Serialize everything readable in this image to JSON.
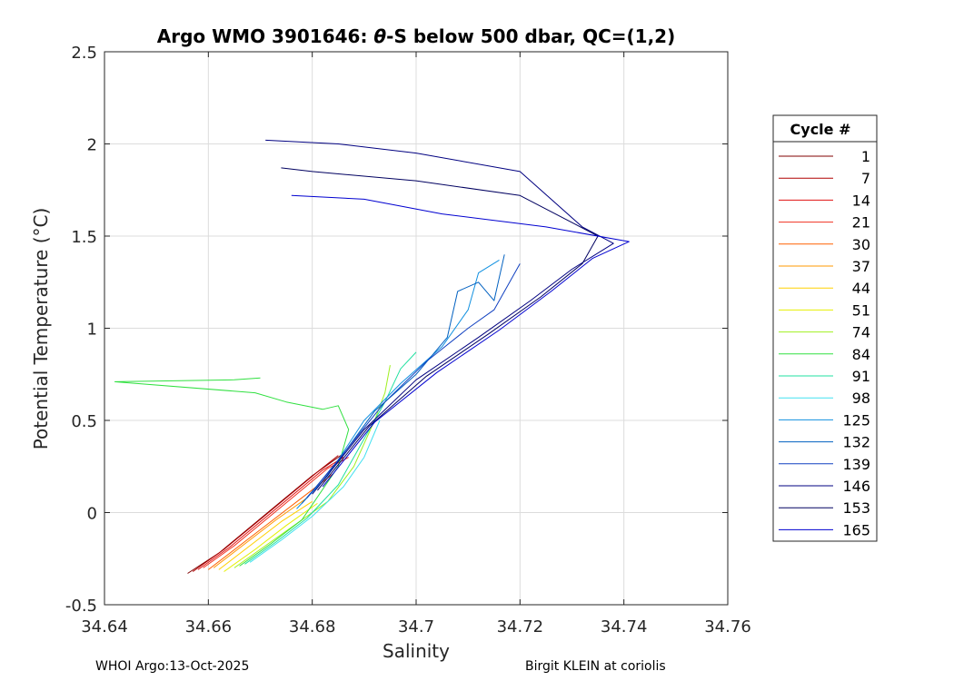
{
  "chart_data": {
    "type": "line",
    "title_prefix": "Argo WMO 3901646: ",
    "title_symbol": "θ",
    "title_suffix": "-S below 500 dbar,  QC=(1,2)",
    "xlabel": "Salinity",
    "ylabel": "Potential Temperature (°C)",
    "xlim": [
      34.64,
      34.76
    ],
    "ylim": [
      -0.5,
      2.5
    ],
    "xticks": [
      "34.64",
      "34.66",
      "34.68",
      "34.7",
      "34.72",
      "34.74",
      "34.76"
    ],
    "yticks": [
      "-0.5",
      "0",
      "0.5",
      "1",
      "1.5",
      "2",
      "2.5"
    ],
    "grid": true,
    "legend": {
      "title": "Cycle #",
      "placement": "outside-right",
      "entries": [
        "1",
        "7",
        "14",
        "21",
        "30",
        "37",
        "44",
        "51",
        "74",
        "84",
        "91",
        "98",
        "125",
        "132",
        "139",
        "146",
        "153",
        "165"
      ]
    },
    "series": [
      {
        "name": "1",
        "color": "#800000",
        "points": [
          [
            34.656,
            -0.33
          ],
          [
            34.662,
            -0.22
          ],
          [
            34.668,
            -0.08
          ],
          [
            34.674,
            0.06
          ],
          [
            34.68,
            0.2
          ],
          [
            34.686,
            0.32
          ]
        ]
      },
      {
        "name": "7",
        "color": "#b00000",
        "points": [
          [
            34.657,
            -0.32
          ],
          [
            34.663,
            -0.2
          ],
          [
            34.669,
            -0.06
          ],
          [
            34.675,
            0.08
          ],
          [
            34.681,
            0.22
          ],
          [
            34.685,
            0.31
          ]
        ]
      },
      {
        "name": "14",
        "color": "#e01010",
        "points": [
          [
            34.658,
            -0.31
          ],
          [
            34.664,
            -0.19
          ],
          [
            34.67,
            -0.05
          ],
          [
            34.676,
            0.09
          ],
          [
            34.682,
            0.23
          ],
          [
            34.686,
            0.3
          ]
        ]
      },
      {
        "name": "21",
        "color": "#f03020",
        "points": [
          [
            34.659,
            -0.3
          ],
          [
            34.665,
            -0.18
          ],
          [
            34.671,
            -0.04
          ],
          [
            34.677,
            0.1
          ],
          [
            34.683,
            0.24
          ],
          [
            34.687,
            0.3
          ]
        ]
      },
      {
        "name": "30",
        "color": "#ff6000",
        "points": [
          [
            34.66,
            -0.31
          ],
          [
            34.666,
            -0.18
          ],
          [
            34.672,
            -0.05
          ],
          [
            34.678,
            0.08
          ],
          [
            34.684,
            0.21
          ]
        ]
      },
      {
        "name": "37",
        "color": "#ff9900",
        "points": [
          [
            34.661,
            -0.3
          ],
          [
            34.667,
            -0.17
          ],
          [
            34.673,
            -0.04
          ],
          [
            34.679,
            0.08
          ]
        ]
      },
      {
        "name": "44",
        "color": "#ffd000",
        "points": [
          [
            34.662,
            -0.31
          ],
          [
            34.668,
            -0.18
          ],
          [
            34.674,
            -0.05
          ],
          [
            34.68,
            0.06
          ]
        ]
      },
      {
        "name": "51",
        "color": "#e6f000",
        "points": [
          [
            34.663,
            -0.32
          ],
          [
            34.669,
            -0.2
          ],
          [
            34.675,
            -0.07
          ],
          [
            34.681,
            0.05
          ]
        ]
      },
      {
        "name": "74",
        "color": "#a0f020",
        "points": [
          [
            34.665,
            -0.3
          ],
          [
            34.671,
            -0.18
          ],
          [
            34.677,
            -0.06
          ],
          [
            34.683,
            0.06
          ],
          [
            34.688,
            0.25
          ],
          [
            34.692,
            0.5
          ],
          [
            34.694,
            0.65
          ],
          [
            34.695,
            0.8
          ]
        ]
      },
      {
        "name": "84",
        "color": "#30e040",
        "points": [
          [
            34.666,
            -0.29
          ],
          [
            34.672,
            -0.17
          ],
          [
            34.678,
            -0.04
          ],
          [
            34.685,
            0.25
          ],
          [
            34.687,
            0.45
          ],
          [
            34.685,
            0.58
          ],
          [
            34.682,
            0.56
          ],
          [
            34.675,
            0.6
          ],
          [
            34.669,
            0.65
          ],
          [
            34.642,
            0.71
          ],
          [
            34.665,
            0.72
          ],
          [
            34.67,
            0.73
          ]
        ]
      },
      {
        "name": "91",
        "color": "#20e0a0",
        "points": [
          [
            34.667,
            -0.28
          ],
          [
            34.673,
            -0.16
          ],
          [
            34.679,
            -0.03
          ],
          [
            34.685,
            0.15
          ],
          [
            34.69,
            0.4
          ],
          [
            34.694,
            0.6
          ],
          [
            34.697,
            0.78
          ],
          [
            34.7,
            0.87
          ]
        ]
      },
      {
        "name": "98",
        "color": "#40e0f0",
        "points": [
          [
            34.668,
            -0.27
          ],
          [
            34.674,
            -0.15
          ],
          [
            34.68,
            -0.02
          ],
          [
            34.686,
            0.14
          ],
          [
            34.69,
            0.3
          ],
          [
            34.693,
            0.5
          ]
        ]
      },
      {
        "name": "125",
        "color": "#1090e0",
        "points": [
          [
            34.677,
            0.02
          ],
          [
            34.683,
            0.2
          ],
          [
            34.69,
            0.5
          ],
          [
            34.697,
            0.7
          ],
          [
            34.705,
            0.9
          ],
          [
            34.71,
            1.1
          ],
          [
            34.712,
            1.3
          ],
          [
            34.716,
            1.37
          ]
        ]
      },
      {
        "name": "132",
        "color": "#0060c0",
        "points": [
          [
            34.678,
            0.05
          ],
          [
            34.685,
            0.28
          ],
          [
            34.692,
            0.55
          ],
          [
            34.7,
            0.75
          ],
          [
            34.706,
            0.95
          ],
          [
            34.708,
            1.2
          ],
          [
            34.712,
            1.25
          ],
          [
            34.715,
            1.15
          ],
          [
            34.717,
            1.4
          ]
        ]
      },
      {
        "name": "139",
        "color": "#1040c0",
        "points": [
          [
            34.679,
            0.08
          ],
          [
            34.686,
            0.32
          ],
          [
            34.694,
            0.6
          ],
          [
            34.702,
            0.82
          ],
          [
            34.71,
            1.0
          ],
          [
            34.715,
            1.1
          ],
          [
            34.718,
            1.25
          ],
          [
            34.72,
            1.35
          ]
        ]
      },
      {
        "name": "146",
        "color": "#000080",
        "points": [
          [
            34.68,
            0.1
          ],
          [
            34.69,
            0.45
          ],
          [
            34.7,
            0.72
          ],
          [
            34.712,
            0.95
          ],
          [
            34.722,
            1.15
          ],
          [
            34.73,
            1.32
          ],
          [
            34.738,
            1.46
          ],
          [
            34.732,
            1.55
          ],
          [
            34.72,
            1.85
          ],
          [
            34.7,
            1.95
          ],
          [
            34.685,
            2.0
          ],
          [
            34.671,
            2.02
          ]
        ]
      },
      {
        "name": "153",
        "color": "#000060",
        "points": [
          [
            34.681,
            0.12
          ],
          [
            34.691,
            0.47
          ],
          [
            34.702,
            0.74
          ],
          [
            34.714,
            0.97
          ],
          [
            34.724,
            1.17
          ],
          [
            34.732,
            1.35
          ],
          [
            34.735,
            1.5
          ],
          [
            34.72,
            1.72
          ],
          [
            34.7,
            1.8
          ],
          [
            34.68,
            1.85
          ],
          [
            34.674,
            1.87
          ]
        ]
      },
      {
        "name": "165",
        "color": "#0000d0",
        "points": [
          [
            34.682,
            0.14
          ],
          [
            34.692,
            0.49
          ],
          [
            34.704,
            0.76
          ],
          [
            34.716,
            0.99
          ],
          [
            34.726,
            1.2
          ],
          [
            34.734,
            1.38
          ],
          [
            34.741,
            1.47
          ],
          [
            34.725,
            1.55
          ],
          [
            34.705,
            1.62
          ],
          [
            34.69,
            1.7
          ],
          [
            34.676,
            1.72
          ]
        ]
      }
    ]
  },
  "footer": {
    "left": "WHOI Argo:13-Oct-2025",
    "right": "Birgit KLEIN at coriolis"
  }
}
